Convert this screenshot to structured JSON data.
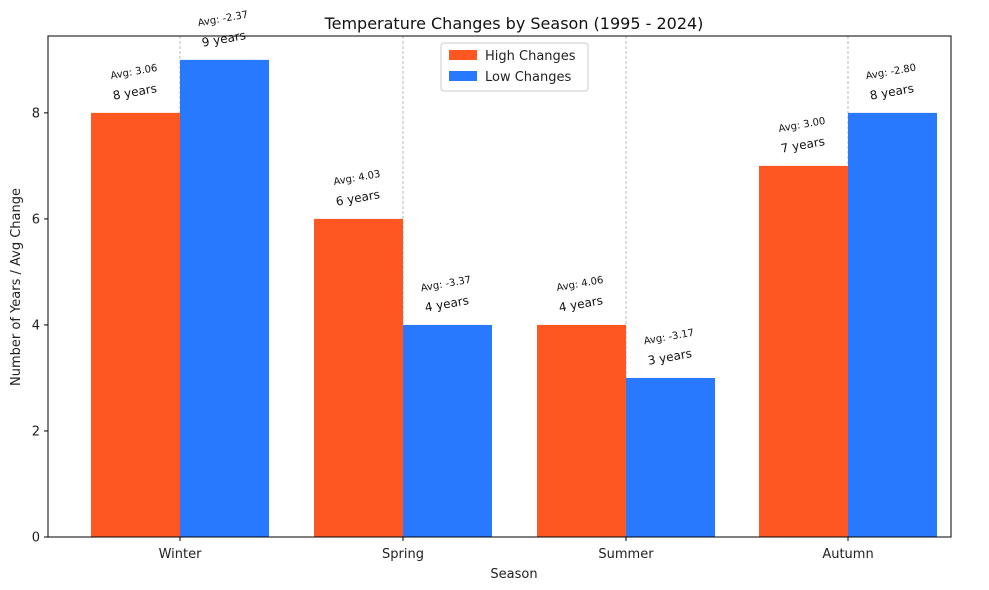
{
  "chart_data": {
    "type": "bar",
    "title": "Temperature Changes by Season (1995 - 2024)",
    "xlabel": "Season",
    "ylabel": "Number of Years / Avg Change",
    "categories": [
      "Winter",
      "Spring",
      "Summer",
      "Autumn"
    ],
    "ylim": [
      0,
      9.45
    ],
    "yticks": [
      0,
      2,
      4,
      6,
      8
    ],
    "grid": "vertical dashed lines at category centers",
    "legend_position": "top-center",
    "series": [
      {
        "name": "High Changes",
        "color": "#FF5722",
        "values": [
          8,
          6,
          4,
          7
        ],
        "count_labels": [
          "8 years",
          "6 years",
          "4 years",
          "7 years"
        ],
        "avg_labels": [
          "Avg: 3.06",
          "Avg: 4.03",
          "Avg: 4.06",
          "Avg: 3.00"
        ]
      },
      {
        "name": "Low Changes",
        "color": "#2979FF",
        "values": [
          9,
          4,
          3,
          8
        ],
        "count_labels": [
          "9 years",
          "4 years",
          "3 years",
          "8 years"
        ],
        "avg_labels": [
          "Avg: -2.37",
          "Avg: -3.37",
          "Avg: -3.17",
          "Avg: -2.80"
        ]
      }
    ]
  }
}
